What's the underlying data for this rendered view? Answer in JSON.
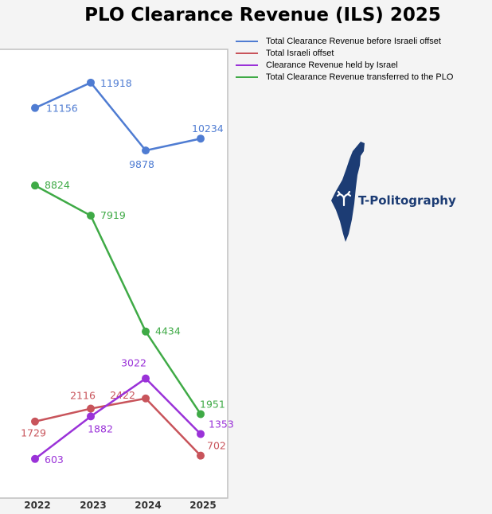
{
  "title": "PLO Clearance Revenue (ILS) 2025",
  "brand": {
    "name": "T-Politography",
    "color": "#1c3c74"
  },
  "chart_data": {
    "type": "line",
    "title": "PLO Clearance Revenue (ILS) 2025",
    "x": [
      "2022",
      "2023",
      "2024",
      "2025"
    ],
    "ylim": [
      0,
      13000
    ],
    "grid": false,
    "legend_position": "top-right",
    "series": [
      {
        "name": "Total Clearance Revenue before Israeli offset",
        "color": "#4f7cd2",
        "values": [
          11156,
          11918,
          9878,
          10234
        ]
      },
      {
        "name": "Total Israeli offset",
        "color": "#c8545b",
        "values": [
          1729,
          2116,
          2422,
          702
        ]
      },
      {
        "name": "Clearance Revenue held by Israel",
        "color": "#9a32d8",
        "values": [
          603,
          1882,
          3022,
          1353
        ]
      },
      {
        "name": "Total Clearance Revenue transferred to the PLO",
        "color": "#3faa46",
        "values": [
          8824,
          7919,
          4434,
          1951
        ]
      }
    ]
  }
}
